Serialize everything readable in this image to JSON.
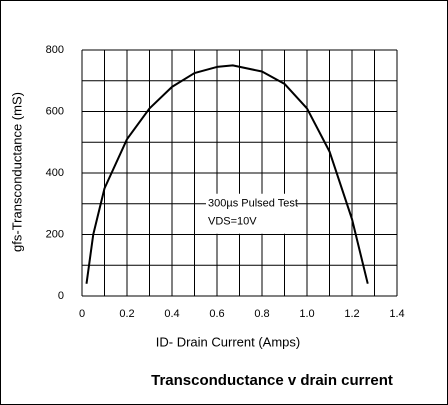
{
  "chart_data": {
    "type": "line",
    "title": "Transconductance v drain current",
    "x_label": "ID- Drain Current (Amps)",
    "y_label": "gfs-Transconductance (mS)",
    "annotations": [
      "300µs Pulsed Test",
      "VDS=10V"
    ],
    "x": [
      0.02,
      0.05,
      0.1,
      0.2,
      0.3,
      0.4,
      0.5,
      0.6,
      0.67,
      0.8,
      0.9,
      1.0,
      1.1,
      1.2,
      1.27
    ],
    "series": [
      {
        "name": "gfs",
        "color": "#000000",
        "values": [
          40,
          200,
          350,
          510,
          610,
          680,
          725,
          745,
          750,
          730,
          690,
          610,
          470,
          250,
          40
        ]
      }
    ],
    "xlim": [
      0,
      1.4
    ],
    "xticks": [
      0,
      0.2,
      0.4,
      0.6,
      0.8,
      {
        "value": 1.0,
        "label": "1.0"
      },
      1.2,
      1.4
    ],
    "ylim": [
      0,
      800
    ],
    "yticks": [
      0,
      200,
      400,
      600,
      800
    ],
    "grid": true,
    "minor_grid": true
  }
}
